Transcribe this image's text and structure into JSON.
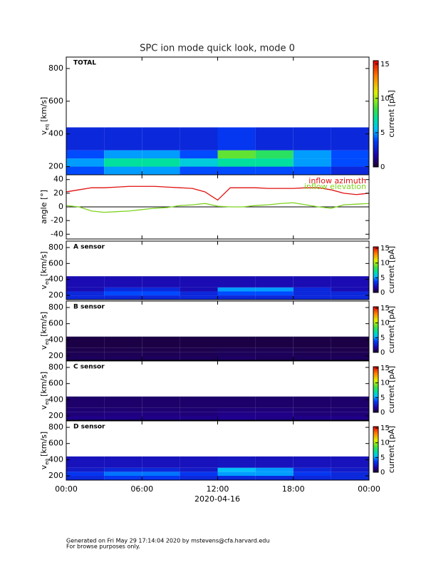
{
  "title": "SPC ion mode quick look, mode 0",
  "x_axis": {
    "xlim": [
      0,
      24
    ],
    "xticks": [
      {
        "value": 0,
        "label": "00:00"
      },
      {
        "value": 6,
        "label": "06:00"
      },
      {
        "value": 12,
        "label": "12:00"
      },
      {
        "value": 18,
        "label": "18:00"
      },
      {
        "value": 24,
        "label": "00:00"
      }
    ],
    "xlabel": "2020-04-16"
  },
  "chart_data": [
    {
      "type": "heatmap",
      "label": "TOTAL",
      "ylabel": "v",
      "ylabel_sub": "eq",
      "ylabel_unit": "[km/s]",
      "ylim": [
        150,
        870
      ],
      "yticks": [
        200,
        400,
        600,
        800
      ],
      "xbins": [
        0,
        3,
        6,
        9,
        12,
        15,
        18,
        21,
        24
      ],
      "ybins": [
        150,
        200,
        250,
        300,
        440
      ],
      "values": [
        [
          4,
          5,
          5,
          4,
          4,
          4,
          4,
          3
        ],
        [
          5,
          7,
          7,
          6,
          7,
          7,
          5,
          4
        ],
        [
          4,
          5,
          5,
          4,
          9,
          8,
          5,
          4
        ],
        [
          3,
          3,
          3,
          3,
          3.5,
          3,
          3,
          3
        ]
      ],
      "zlim": [
        0,
        15.5
      ],
      "zticks": [
        0,
        5,
        10,
        15
      ],
      "zlabel": "current [pA]"
    },
    {
      "type": "line",
      "ylabel": "angle [°]",
      "ylim": [
        -47,
        47
      ],
      "yticks": [
        -40,
        -20,
        0,
        20,
        40
      ],
      "x": [
        0,
        1,
        2,
        3,
        4,
        5,
        6,
        7,
        8,
        9,
        10,
        11,
        12,
        13,
        14,
        15,
        16,
        17,
        18,
        19,
        20,
        21,
        22,
        23,
        24
      ],
      "series": [
        {
          "name": "inflow azimuth",
          "color": "#e01010",
          "values": [
            22,
            25,
            28,
            28,
            29,
            30,
            30,
            30,
            29,
            28,
            27,
            22,
            10,
            28,
            28,
            28,
            27,
            27,
            27,
            28,
            28,
            25,
            20,
            18,
            20
          ]
        },
        {
          "name": "inflow elevation",
          "color": "#7ed321",
          "values": [
            2,
            0,
            -6,
            -8,
            -7,
            -6,
            -4,
            -2,
            -1,
            2,
            3,
            5,
            1,
            0,
            0,
            2,
            3,
            5,
            6,
            3,
            0,
            -2,
            3,
            4,
            5
          ]
        }
      ]
    },
    {
      "type": "heatmap",
      "label": "A sensor",
      "ylabel": "v",
      "ylabel_sub": "eq",
      "ylabel_unit": "[km/s]",
      "ylim": [
        147,
        880
      ],
      "yticks": [
        200,
        400,
        600,
        800
      ],
      "xbins": [
        0,
        3,
        6,
        9,
        12,
        15,
        18,
        21,
        24
      ],
      "ybins": [
        150,
        200,
        250,
        300,
        440
      ],
      "values": [
        [
          3,
          3,
          3,
          3,
          3,
          3,
          3,
          3
        ],
        [
          3,
          4,
          4,
          3,
          4,
          4,
          3,
          3
        ],
        [
          2,
          3,
          3,
          2,
          5,
          5,
          3,
          2
        ],
        [
          2,
          2,
          2,
          2,
          2,
          2,
          2,
          2
        ]
      ],
      "zlim": [
        0,
        15.5
      ],
      "zticks": [
        0,
        5,
        10,
        15
      ],
      "zlabel": "current [pA]"
    },
    {
      "type": "heatmap",
      "label": "B sensor",
      "ylabel": "v",
      "ylabel_sub": "eq",
      "ylabel_unit": "[km/s]",
      "ylim": [
        147,
        880
      ],
      "yticks": [
        200,
        400,
        600,
        800
      ],
      "xbins": [
        0,
        3,
        6,
        9,
        12,
        15,
        18,
        21,
        24
      ],
      "ybins": [
        150,
        200,
        250,
        300,
        440
      ],
      "values": [
        [
          0.6,
          0.6,
          0.6,
          0.6,
          0.7,
          0.6,
          0.6,
          0.6
        ],
        [
          0.5,
          0.5,
          0.5,
          0.5,
          0.6,
          0.6,
          0.5,
          0.5
        ],
        [
          0.4,
          0.4,
          0.4,
          0.4,
          0.5,
          0.5,
          0.4,
          0.4
        ],
        [
          0.3,
          0.3,
          0.3,
          0.3,
          0.3,
          0.3,
          0.3,
          0.3
        ]
      ],
      "zlim": [
        0,
        15.5
      ],
      "zticks": [
        0,
        5,
        10,
        15
      ],
      "zlabel": "current [pA]"
    },
    {
      "type": "heatmap",
      "label": "C sensor",
      "ylabel": "v",
      "ylabel_sub": "eq",
      "ylabel_unit": "[km/s]",
      "ylim": [
        147,
        880
      ],
      "yticks": [
        200,
        400,
        600,
        800
      ],
      "xbins": [
        0,
        3,
        6,
        9,
        12,
        15,
        18,
        21,
        24
      ],
      "ybins": [
        150,
        200,
        250,
        300,
        440
      ],
      "values": [
        [
          1.2,
          1.2,
          1.2,
          1.2,
          1.3,
          1.2,
          1.2,
          1.2
        ],
        [
          1,
          1.1,
          1.1,
          1,
          1.2,
          1.2,
          1,
          1
        ],
        [
          0.9,
          0.9,
          0.9,
          0.9,
          1,
          1,
          0.9,
          0.9
        ],
        [
          0.8,
          0.8,
          0.8,
          0.8,
          0.8,
          0.8,
          0.8,
          0.8
        ]
      ],
      "zlim": [
        0,
        15.5
      ],
      "zticks": [
        0,
        5,
        10,
        15
      ],
      "zlabel": "current [pA]"
    },
    {
      "type": "heatmap",
      "label": "D sensor",
      "ylabel": "v",
      "ylabel_sub": "eq",
      "ylabel_unit": "[km/s]",
      "ylim": [
        147,
        880
      ],
      "yticks": [
        200,
        400,
        600,
        800
      ],
      "xbins": [
        0,
        3,
        6,
        9,
        12,
        15,
        18,
        21,
        24
      ],
      "ybins": [
        150,
        200,
        250,
        300,
        440
      ],
      "values": [
        [
          3,
          3.5,
          3.5,
          3,
          3,
          3,
          3,
          3
        ],
        [
          3.5,
          4.5,
          4.5,
          3.5,
          5,
          5,
          3.5,
          3
        ],
        [
          2.5,
          3,
          3,
          2.5,
          5.5,
          5,
          3,
          2.5
        ],
        [
          2.2,
          2.2,
          2.2,
          2.2,
          2.3,
          2.2,
          2.2,
          2.2
        ]
      ],
      "zlim": [
        0,
        15.5
      ],
      "zticks": [
        0,
        5,
        10,
        15
      ],
      "zlabel": "current [pA]"
    }
  ],
  "footer": [
    "Generated on Fri May 29 17:14:04 2020 by mstevens@cfa.harvard.edu",
    "For browse purposes only."
  ]
}
